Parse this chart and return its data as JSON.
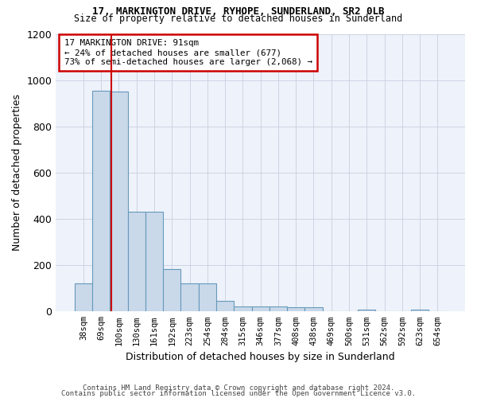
{
  "title1": "17, MARKINGTON DRIVE, RYHOPE, SUNDERLAND, SR2 0LB",
  "title2": "Size of property relative to detached houses in Sunderland",
  "xlabel": "Distribution of detached houses by size in Sunderland",
  "ylabel": "Number of detached properties",
  "footer1": "Contains HM Land Registry data © Crown copyright and database right 2024.",
  "footer2": "Contains public sector information licensed under the Open Government Licence v3.0.",
  "annotation_line1": "17 MARKINGTON DRIVE: 91sqm",
  "annotation_line2": "← 24% of detached houses are smaller (677)",
  "annotation_line3": "73% of semi-detached houses are larger (2,068) →",
  "bar_color": "#c9d9ea",
  "bar_edge_color": "#6699bb",
  "redline_color": "#cc0000",
  "annotation_box_color": "#cc0000",
  "background_color": "#eef2fa",
  "categories": [
    "38sqm",
    "69sqm",
    "100sqm",
    "130sqm",
    "161sqm",
    "192sqm",
    "223sqm",
    "254sqm",
    "284sqm",
    "315sqm",
    "346sqm",
    "377sqm",
    "408sqm",
    "438sqm",
    "469sqm",
    "500sqm",
    "531sqm",
    "562sqm",
    "592sqm",
    "623sqm",
    "654sqm"
  ],
  "values": [
    120,
    955,
    950,
    430,
    430,
    185,
    120,
    120,
    45,
    20,
    20,
    20,
    18,
    18,
    0,
    0,
    8,
    0,
    0,
    8,
    0
  ],
  "ylim": [
    0,
    1200
  ],
  "yticks": [
    0,
    200,
    400,
    600,
    800,
    1000,
    1200
  ],
  "redline_x": 1.58,
  "figsize": [
    6.0,
    5.0
  ],
  "dpi": 100
}
